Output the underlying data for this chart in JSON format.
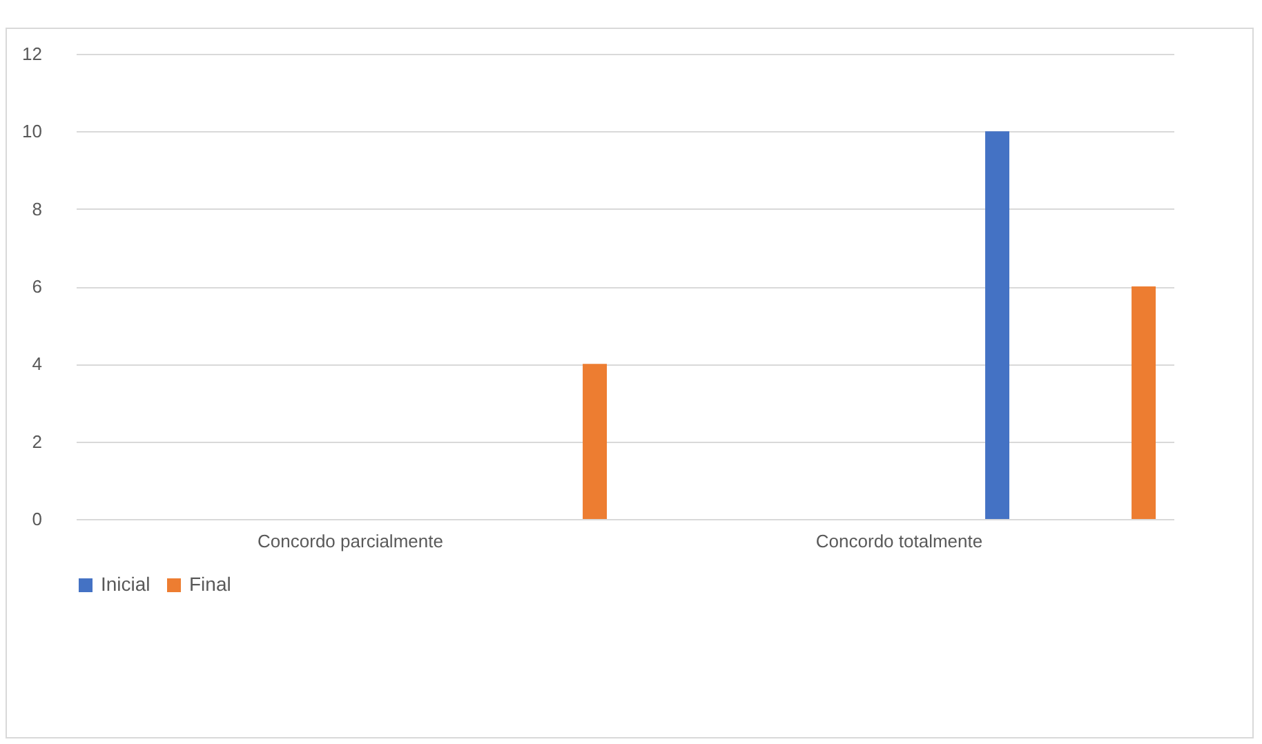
{
  "chart_data": {
    "type": "bar",
    "categories": [
      "Concordo parcialmente",
      "Concordo totalmente"
    ],
    "series": [
      {
        "name": "Inicial",
        "color": "#4472c4",
        "values": [
          0,
          10
        ]
      },
      {
        "name": "Final",
        "color": "#ed7d31",
        "values": [
          4,
          6
        ]
      }
    ],
    "ylim": [
      0,
      12
    ],
    "yticks": [
      0,
      2,
      4,
      6,
      8,
      10,
      12
    ],
    "grid": "y",
    "legend": "bottom"
  }
}
